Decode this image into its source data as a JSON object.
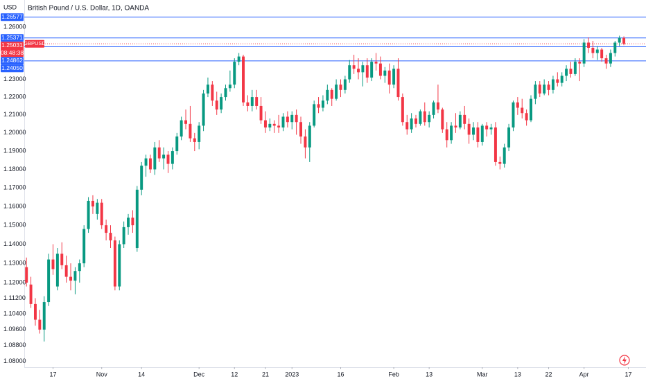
{
  "chart_data": {
    "type": "candlestick",
    "title": "British Pound / U.S. Dollar, 1D, OANDA",
    "currency": "USD",
    "symbol": "GBPUSD",
    "countdown": "08:48:38",
    "up_color": "#089981",
    "down_color": "#f23645",
    "log_scale": true,
    "open": [
      1.128,
      1.119,
      1.109,
      1.101,
      1.096,
      1.11,
      1.132,
      1.118,
      1.135,
      1.129,
      1.123,
      1.121,
      1.126,
      1.13,
      1.148,
      1.163,
      1.156,
      1.162,
      1.15,
      1.146,
      1.142,
      1.118,
      1.14,
      1.149,
      1.154,
      1.138,
      1.169,
      1.182,
      1.186,
      1.18,
      1.192,
      1.186,
      1.188,
      1.183,
      1.19,
      1.198,
      1.207,
      1.205,
      1.197,
      1.195,
      1.204,
      1.222,
      1.227,
      1.218,
      1.213,
      1.22,
      1.225,
      1.227,
      1.24,
      1.243,
      1.217,
      1.215,
      1.22,
      1.215,
      1.207,
      1.203,
      1.205,
      1.204,
      1.203,
      1.209,
      1.206,
      1.21,
      1.206,
      1.198,
      1.192,
      1.204,
      1.216,
      1.214,
      1.218,
      1.224,
      1.219,
      1.227,
      1.224,
      1.23,
      1.238,
      1.236,
      1.234,
      1.238,
      1.231,
      1.24,
      1.239,
      1.232,
      1.235,
      1.227,
      1.236,
      1.22,
      1.206,
      1.202,
      1.208,
      1.205,
      1.212,
      1.206,
      1.21,
      1.217,
      1.213,
      1.202,
      1.196,
      1.204,
      1.203,
      1.21,
      1.205,
      1.199,
      1.203,
      1.195,
      1.204,
      1.202,
      1.203,
      1.184,
      1.183,
      1.192,
      1.203,
      1.217,
      1.214,
      1.211,
      1.207,
      1.219,
      1.227,
      1.222,
      1.227,
      1.224,
      1.23,
      1.228,
      1.232,
      1.236,
      1.233,
      1.24,
      1.239,
      1.251,
      1.248,
      1.245,
      1.247,
      1.242,
      1.239,
      1.245,
      1.251,
      1.2537
    ],
    "high": [
      1.133,
      1.123,
      1.112,
      1.106,
      1.113,
      1.135,
      1.14,
      1.138,
      1.141,
      1.134,
      1.13,
      1.128,
      1.132,
      1.15,
      1.165,
      1.166,
      1.164,
      1.164,
      1.153,
      1.15,
      1.144,
      1.142,
      1.152,
      1.156,
      1.158,
      1.171,
      1.184,
      1.188,
      1.188,
      1.195,
      1.196,
      1.192,
      1.19,
      1.192,
      1.2,
      1.209,
      1.213,
      1.215,
      1.2,
      1.206,
      1.224,
      1.231,
      1.229,
      1.223,
      1.222,
      1.227,
      1.235,
      1.242,
      1.245,
      1.244,
      1.221,
      1.224,
      1.224,
      1.22,
      1.212,
      1.208,
      1.207,
      1.21,
      1.211,
      1.212,
      1.212,
      1.213,
      1.209,
      1.202,
      1.206,
      1.218,
      1.22,
      1.221,
      1.227,
      1.225,
      1.23,
      1.23,
      1.232,
      1.241,
      1.244,
      1.242,
      1.24,
      1.242,
      1.242,
      1.245,
      1.243,
      1.237,
      1.239,
      1.238,
      1.242,
      1.222,
      1.21,
      1.211,
      1.21,
      1.213,
      1.217,
      1.212,
      1.218,
      1.227,
      1.214,
      1.206,
      1.206,
      1.211,
      1.212,
      1.215,
      1.208,
      1.206,
      1.206,
      1.205,
      1.206,
      1.205,
      1.206,
      1.187,
      1.194,
      1.205,
      1.218,
      1.22,
      1.219,
      1.213,
      1.221,
      1.229,
      1.229,
      1.23,
      1.229,
      1.232,
      1.234,
      1.234,
      1.238,
      1.24,
      1.242,
      1.242,
      1.253,
      1.254,
      1.252,
      1.249,
      1.248,
      1.244,
      1.247,
      1.252,
      1.255,
      1.2546
    ],
    "low": [
      1.118,
      1.107,
      1.098,
      1.094,
      1.09,
      1.108,
      1.124,
      1.116,
      1.127,
      1.12,
      1.116,
      1.114,
      1.12,
      1.128,
      1.146,
      1.156,
      1.153,
      1.148,
      1.142,
      1.138,
      1.116,
      1.116,
      1.138,
      1.145,
      1.146,
      1.136,
      1.166,
      1.176,
      1.178,
      1.177,
      1.184,
      1.18,
      1.178,
      1.18,
      1.188,
      1.196,
      1.202,
      1.195,
      1.19,
      1.191,
      1.201,
      1.22,
      1.215,
      1.21,
      1.211,
      1.218,
      1.223,
      1.225,
      1.238,
      1.215,
      1.212,
      1.212,
      1.213,
      1.205,
      1.2,
      1.201,
      1.2,
      1.2,
      1.201,
      1.203,
      1.202,
      1.199,
      1.194,
      1.186,
      1.184,
      1.203,
      1.211,
      1.212,
      1.216,
      1.215,
      1.218,
      1.22,
      1.222,
      1.228,
      1.233,
      1.23,
      1.226,
      1.228,
      1.229,
      1.235,
      1.23,
      1.228,
      1.222,
      1.225,
      1.218,
      1.204,
      1.199,
      1.2,
      1.203,
      1.204,
      1.204,
      1.203,
      1.208,
      1.211,
      1.2,
      1.192,
      1.194,
      1.2,
      1.202,
      1.202,
      1.194,
      1.196,
      1.192,
      1.193,
      1.198,
      1.199,
      1.182,
      1.18,
      1.181,
      1.19,
      1.201,
      1.21,
      1.208,
      1.204,
      1.206,
      1.216,
      1.22,
      1.221,
      1.221,
      1.222,
      1.226,
      1.226,
      1.229,
      1.231,
      1.232,
      1.229,
      1.237,
      1.245,
      1.242,
      1.241,
      1.24,
      1.236,
      1.237,
      1.243,
      1.249,
      1.2495
    ],
    "close": [
      1.12,
      1.109,
      1.101,
      1.096,
      1.11,
      1.132,
      1.127,
      1.135,
      1.129,
      1.123,
      1.121,
      1.126,
      1.13,
      1.148,
      1.163,
      1.16,
      1.162,
      1.15,
      1.146,
      1.142,
      1.118,
      1.14,
      1.149,
      1.154,
      1.15,
      1.169,
      1.182,
      1.186,
      1.18,
      1.192,
      1.186,
      1.188,
      1.183,
      1.19,
      1.198,
      1.207,
      1.205,
      1.197,
      1.195,
      1.204,
      1.222,
      1.227,
      1.218,
      1.213,
      1.22,
      1.225,
      1.227,
      1.24,
      1.243,
      1.217,
      1.215,
      1.22,
      1.215,
      1.207,
      1.203,
      1.205,
      1.204,
      1.203,
      1.209,
      1.206,
      1.21,
      1.206,
      1.198,
      1.192,
      1.204,
      1.216,
      1.214,
      1.218,
      1.224,
      1.219,
      1.227,
      1.224,
      1.23,
      1.238,
      1.236,
      1.234,
      1.238,
      1.231,
      1.24,
      1.239,
      1.232,
      1.235,
      1.227,
      1.236,
      1.22,
      1.206,
      1.202,
      1.208,
      1.205,
      1.212,
      1.206,
      1.21,
      1.217,
      1.213,
      1.202,
      1.196,
      1.204,
      1.203,
      1.21,
      1.205,
      1.199,
      1.203,
      1.195,
      1.204,
      1.202,
      1.203,
      1.184,
      1.183,
      1.192,
      1.203,
      1.217,
      1.214,
      1.211,
      1.207,
      1.219,
      1.227,
      1.222,
      1.227,
      1.224,
      1.23,
      1.228,
      1.232,
      1.236,
      1.233,
      1.24,
      1.239,
      1.251,
      1.248,
      1.245,
      1.247,
      1.242,
      1.239,
      1.245,
      1.251,
      1.2537,
      1.2503
    ],
    "xlim": [
      -0.5,
      140
    ],
    "xticks": [
      {
        "value": 6,
        "label": "17"
      },
      {
        "value": 17,
        "label": "Nov"
      },
      {
        "value": 26,
        "label": "14"
      },
      {
        "value": 39,
        "label": "Dec"
      },
      {
        "value": 47,
        "label": "12"
      },
      {
        "value": 54,
        "label": "21"
      },
      {
        "value": 60,
        "label": "2023"
      },
      {
        "value": 71,
        "label": "16"
      },
      {
        "value": 83,
        "label": "Feb"
      },
      {
        "value": 91,
        "label": "13"
      },
      {
        "value": 103,
        "label": "Mar"
      },
      {
        "value": 111,
        "label": "13"
      },
      {
        "value": 118,
        "label": "22"
      },
      {
        "value": 126,
        "label": "Apr"
      },
      {
        "value": 136,
        "label": "17"
      }
    ],
    "ylim": [
      1.0772,
      1.2758
    ],
    "yticks": [
      {
        "value": 1.26,
        "label": "1.26000"
      },
      {
        "value": 1.23,
        "label": "1.23000"
      },
      {
        "value": 1.22,
        "label": "1.22000"
      },
      {
        "value": 1.21,
        "label": "1.21000"
      },
      {
        "value": 1.2,
        "label": "1.20000"
      },
      {
        "value": 1.19,
        "label": "1.19000"
      },
      {
        "value": 1.18,
        "label": "1.18000"
      },
      {
        "value": 1.17,
        "label": "1.17000"
      },
      {
        "value": 1.16,
        "label": "1.16000"
      },
      {
        "value": 1.15,
        "label": "1.15000"
      },
      {
        "value": 1.14,
        "label": "1.14000"
      },
      {
        "value": 1.13,
        "label": "1.13000"
      },
      {
        "value": 1.12,
        "label": "1.12000"
      },
      {
        "value": 1.112,
        "label": "1.11200"
      },
      {
        "value": 1.104,
        "label": "1.10400"
      },
      {
        "value": 1.096,
        "label": "1.09600"
      },
      {
        "value": 1.088,
        "label": "1.08800"
      },
      {
        "value": 1.08,
        "label": "1.08000"
      }
    ],
    "level_color": "#2962ff",
    "levels": [
      1.26577,
      1.25371,
      1.24862,
      {
        "value": 1.2405,
        "label": "1.24050"
      }
    ],
    "last_price": 1.25031
  }
}
